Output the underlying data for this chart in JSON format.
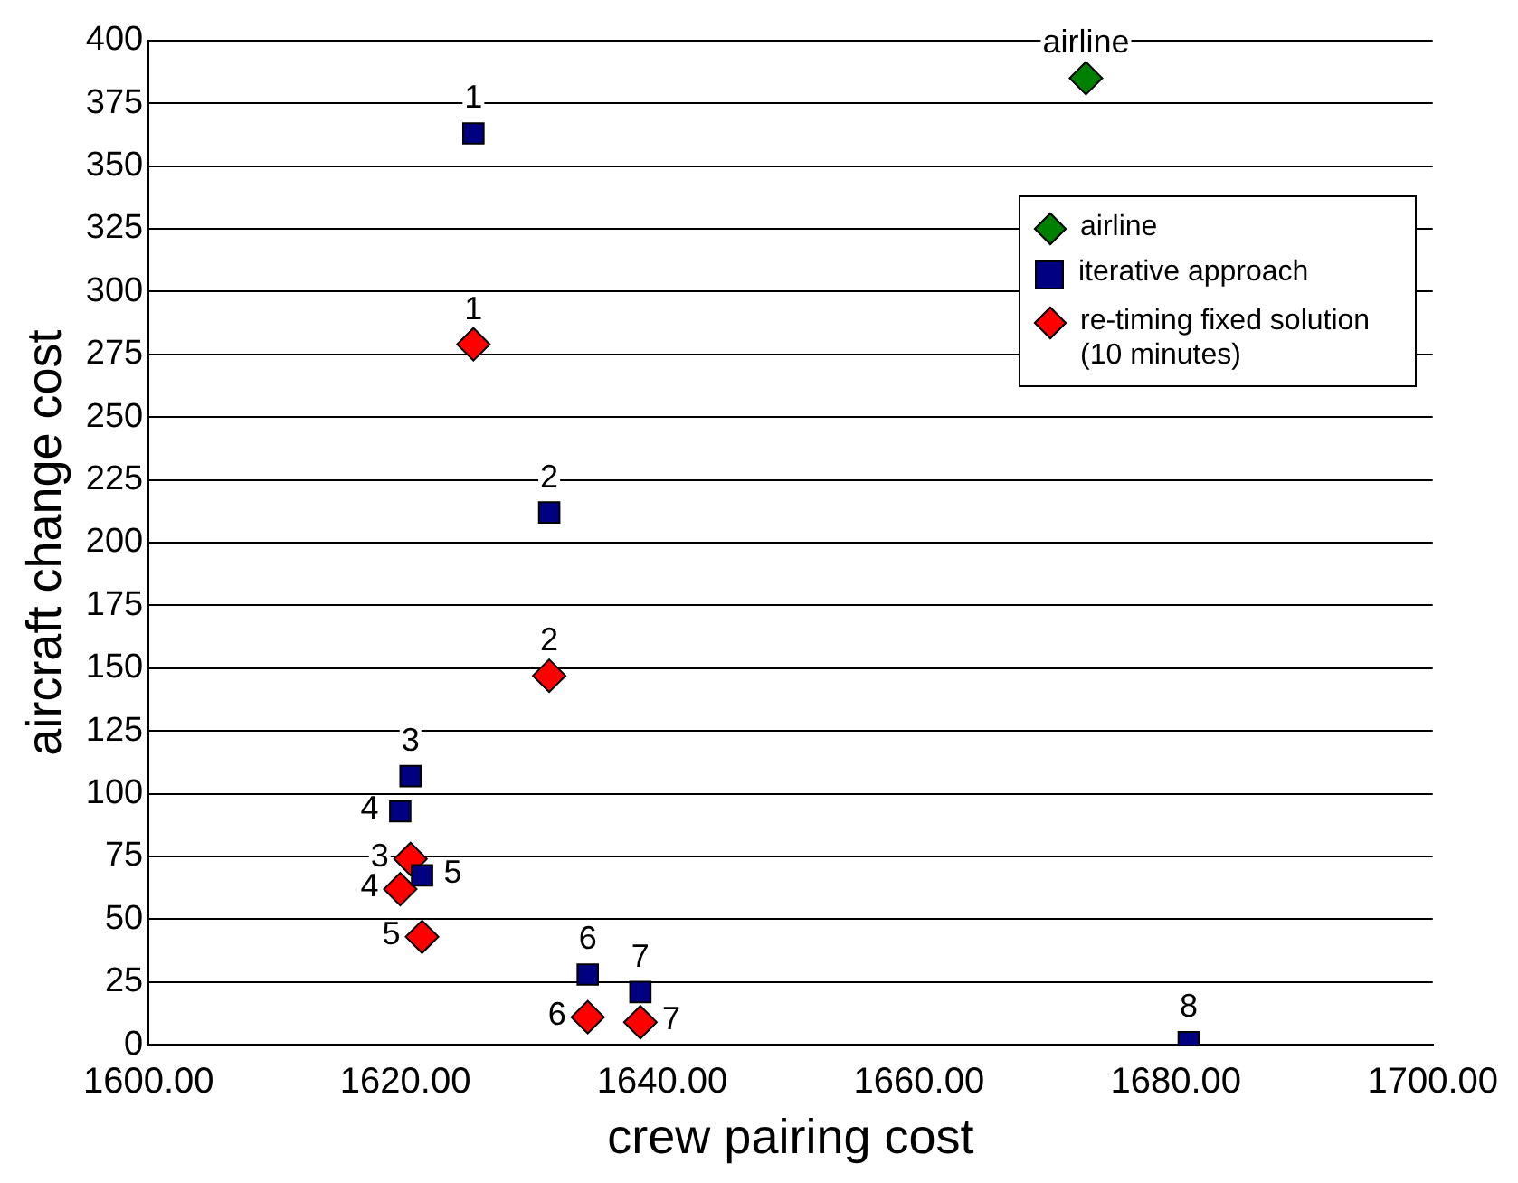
{
  "chart_data": {
    "type": "scatter",
    "xlabel": "crew pairing cost",
    "ylabel": "aircraft change cost",
    "xlim": [
      1600,
      1700
    ],
    "xticks": [
      {
        "value": 1600,
        "label": "1600.00"
      },
      {
        "value": 1620,
        "label": "1620.00"
      },
      {
        "value": 1640,
        "label": "1640.00"
      },
      {
        "value": 1660,
        "label": "1660.00"
      },
      {
        "value": 1680,
        "label": "1680.00"
      },
      {
        "value": 1700,
        "label": "1700.00"
      }
    ],
    "ylim": [
      0,
      400
    ],
    "yticks": [
      0,
      25,
      50,
      75,
      100,
      125,
      150,
      175,
      200,
      225,
      250,
      275,
      300,
      325,
      350,
      375,
      400
    ],
    "grid": "y",
    "legend": "top right",
    "series": [
      {
        "name": "airline",
        "color": "#008000",
        "marker": "diamond",
        "x": [
          1673
        ],
        "values": [
          385
        ]
      },
      {
        "name": "iterative approach",
        "color": "#000080",
        "marker": "square",
        "x": [
          1625.3,
          1631.2,
          1620.4,
          1619.6,
          1621.3,
          1634.2,
          1638.3,
          1681
        ],
        "values": [
          363,
          212,
          107,
          93,
          67.5,
          28,
          21,
          1
        ]
      },
      {
        "name": "re-timing fixed solution (10 minutes)",
        "color": "#ff0000",
        "marker": "diamond",
        "x": [
          1625.3,
          1631.2,
          1620.4,
          1619.6,
          1621.3,
          1634.2,
          1638.3
        ],
        "values": [
          279,
          147,
          74,
          62,
          43,
          11,
          9
        ]
      }
    ],
    "annotations": [
      {
        "text": "airline",
        "x": 1673,
        "y": 385
      },
      {
        "text": "1",
        "x": 1625.3,
        "y": 363
      },
      {
        "text": "2",
        "x": 1631.2,
        "y": 212
      },
      {
        "text": "3",
        "x": 1620.4,
        "y": 107
      },
      {
        "text": "4",
        "x": 1619.6,
        "y": 93
      },
      {
        "text": "5",
        "x": 1621.3,
        "y": 67.5
      },
      {
        "text": "6",
        "x": 1634.2,
        "y": 28
      },
      {
        "text": "7",
        "x": 1638.3,
        "y": 21
      },
      {
        "text": "8",
        "x": 1681,
        "y": 1
      },
      {
        "text": "1",
        "x": 1625.3,
        "y": 279
      },
      {
        "text": "2",
        "x": 1631.2,
        "y": 147
      },
      {
        "text": "3",
        "x": 1620.4,
        "y": 74
      },
      {
        "text": "4",
        "x": 1619.6,
        "y": 62
      },
      {
        "text": "5",
        "x": 1621.3,
        "y": 43
      },
      {
        "text": "6",
        "x": 1634.2,
        "y": 11
      },
      {
        "text": "7",
        "x": 1638.3,
        "y": 9
      }
    ]
  }
}
